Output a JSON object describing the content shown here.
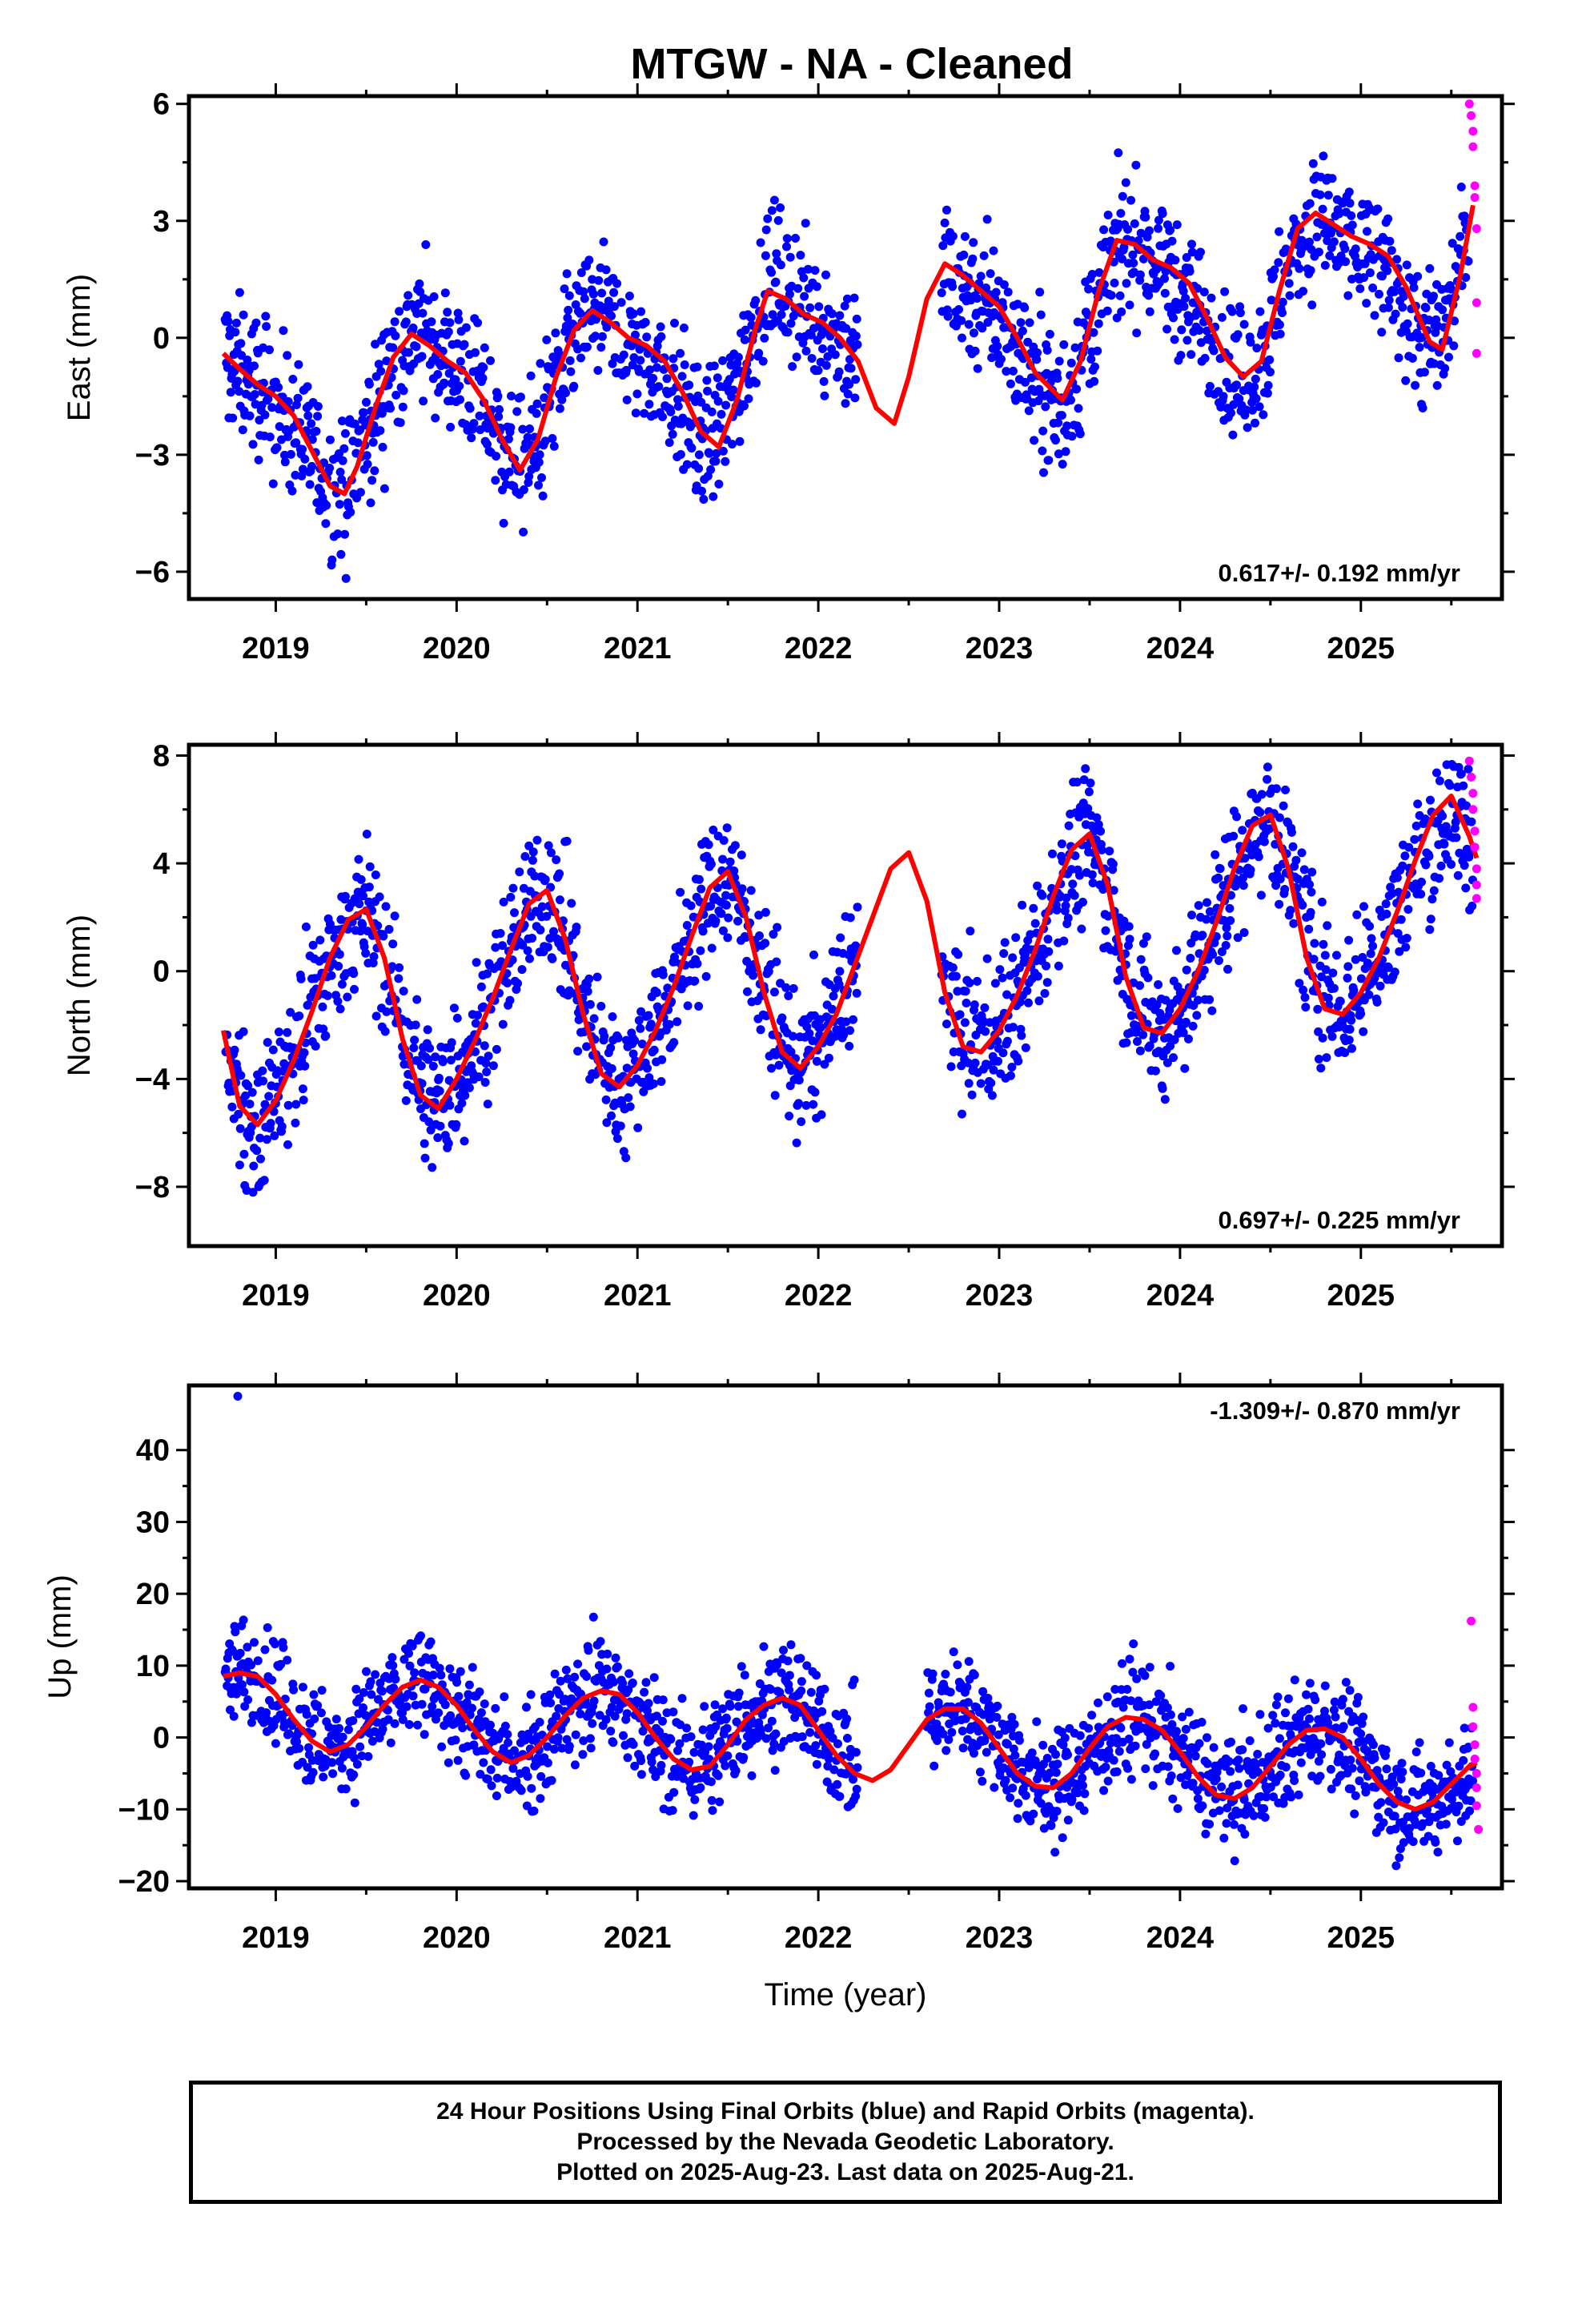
{
  "title": "MTGW  - NA - Cleaned",
  "colors": {
    "final_orbits": "#0000ff",
    "rapid_orbits": "#ff00ff",
    "model_fit": "#ff0000"
  },
  "footer": {
    "line1": "24 Hour Positions Using Final Orbits (blue) and Rapid Orbits (magenta).",
    "line2": "Processed by the Nevada Geodetic Laboratory.",
    "line3": "Plotted on 2025-Aug-23. Last data on 2025-Aug-21."
  },
  "chart_data": [
    {
      "type": "scatter",
      "panel": "east",
      "ylabel": "East (mm)",
      "xlabel": "",
      "rate_label": "0.617+/- 0.192 mm/yr",
      "rate_position": "bottom-right",
      "xlim": [
        2018.52,
        2025.78
      ],
      "ylim": [
        -6.7,
        6.2
      ],
      "yticks": [
        -6,
        -3,
        0,
        3,
        6
      ],
      "yticklabels": [
        "−6",
        "−3",
        "0",
        "3",
        "6"
      ],
      "xticks": [
        2019,
        2020,
        2021,
        2022,
        2023,
        2024,
        2025
      ],
      "xticklabels": [
        "2019",
        "2020",
        "2021",
        "2022",
        "2023",
        "2024",
        "2025"
      ],
      "gaps": [
        [
          2022.22,
          2022.68
        ]
      ],
      "model": {
        "name": "model fit",
        "x": [
          2018.71,
          2018.8,
          2018.9,
          2019.0,
          2019.1,
          2019.2,
          2019.3,
          2019.38,
          2019.45,
          2019.55,
          2019.65,
          2019.75,
          2019.85,
          2019.95,
          2020.05,
          2020.15,
          2020.25,
          2020.35,
          2020.45,
          2020.55,
          2020.65,
          2020.75,
          2020.85,
          2020.95,
          2021.05,
          2021.15,
          2021.25,
          2021.35,
          2021.45,
          2021.55,
          2021.65,
          2021.72,
          2021.82,
          2021.92,
          2022.02,
          2022.12,
          2022.22,
          2022.32,
          2022.42,
          2022.5,
          2022.6,
          2022.7,
          2022.8,
          2022.9,
          2023.0,
          2023.1,
          2023.2,
          2023.35,
          2023.45,
          2023.55,
          2023.65,
          2023.75,
          2023.85,
          2023.95,
          2024.05,
          2024.15,
          2024.25,
          2024.35,
          2024.45,
          2024.55,
          2024.65,
          2024.75,
          2024.85,
          2024.95,
          2025.05,
          2025.15,
          2025.25,
          2025.38,
          2025.45,
          2025.55,
          2025.62
        ],
        "y": [
          -0.4,
          -0.8,
          -1.2,
          -1.5,
          -2.0,
          -2.9,
          -3.8,
          -4.0,
          -3.3,
          -1.8,
          -0.5,
          0.1,
          -0.2,
          -0.6,
          -0.9,
          -1.6,
          -2.6,
          -3.4,
          -2.6,
          -1.0,
          0.2,
          0.7,
          0.4,
          0.0,
          -0.2,
          -0.6,
          -1.4,
          -2.4,
          -2.8,
          -1.6,
          0.2,
          1.2,
          1.0,
          0.6,
          0.4,
          0.0,
          -0.6,
          -1.8,
          -2.2,
          -1.0,
          1.0,
          1.9,
          1.6,
          1.2,
          0.8,
          0.0,
          -0.9,
          -1.6,
          -0.6,
          1.2,
          2.5,
          2.4,
          2.0,
          1.8,
          1.4,
          0.5,
          -0.5,
          -1.0,
          -0.6,
          1.2,
          2.8,
          3.2,
          2.9,
          2.6,
          2.4,
          2.1,
          1.3,
          -0.1,
          -0.3,
          1.6,
          3.4
        ]
      },
      "final_orbits_envelope": {
        "name": "Final Orbits (blue)",
        "x": [
          2018.72,
          2019.35,
          2019.8,
          2020.35,
          2020.75,
          2021.35,
          2021.75,
          2021.95,
          2022.2,
          2022.7,
          2023.35,
          2023.75,
          2024.35,
          2024.75,
          2025.35,
          2025.6
        ],
        "y": [
          -0.5,
          -4.2,
          0.6,
          -3.5,
          0.8,
          -3.0,
          2.4,
          0.5,
          -0.5,
          1.5,
          -2.0,
          2.6,
          -1.5,
          2.8,
          -0.8,
          3.0
        ],
        "spread": 1.6
      },
      "rapid_orbits": {
        "name": "Rapid Orbits (magenta)",
        "x": [
          2025.6,
          2025.61,
          2025.62,
          2025.62,
          2025.63,
          2025.63,
          2025.64,
          2025.64,
          2025.64
        ],
        "y": [
          6.0,
          5.7,
          5.3,
          4.9,
          3.9,
          3.6,
          2.8,
          0.9,
          -0.4
        ]
      }
    },
    {
      "type": "scatter",
      "panel": "north",
      "ylabel": "North (mm)",
      "xlabel": "",
      "rate_label": "0.697+/- 0.225 mm/yr",
      "rate_position": "bottom-right",
      "xlim": [
        2018.52,
        2025.78
      ],
      "ylim": [
        -10.2,
        8.4
      ],
      "yticks": [
        -8,
        -4,
        0,
        4,
        8
      ],
      "yticklabels": [
        "−8",
        "−4",
        "0",
        "4",
        "8"
      ],
      "xticks": [
        2019,
        2020,
        2021,
        2022,
        2023,
        2024,
        2025
      ],
      "xticklabels": [
        "2019",
        "2020",
        "2021",
        "2022",
        "2023",
        "2024",
        "2025"
      ],
      "gaps": [
        [
          2022.22,
          2022.68
        ]
      ],
      "model": {
        "name": "model fit",
        "x": [
          2018.71,
          2018.8,
          2018.9,
          2019.0,
          2019.1,
          2019.2,
          2019.3,
          2019.4,
          2019.5,
          2019.6,
          2019.7,
          2019.8,
          2019.9,
          2020.0,
          2020.1,
          2020.2,
          2020.3,
          2020.4,
          2020.5,
          2020.6,
          2020.7,
          2020.8,
          2020.9,
          2021.0,
          2021.1,
          2021.2,
          2021.3,
          2021.4,
          2021.5,
          2021.6,
          2021.7,
          2021.8,
          2021.9,
          2022.0,
          2022.1,
          2022.2,
          2022.3,
          2022.4,
          2022.5,
          2022.6,
          2022.7,
          2022.8,
          2022.9,
          2023.0,
          2023.1,
          2023.2,
          2023.3,
          2023.4,
          2023.5,
          2023.6,
          2023.7,
          2023.8,
          2023.9,
          2024.0,
          2024.1,
          2024.2,
          2024.3,
          2024.4,
          2024.5,
          2024.6,
          2024.7,
          2024.8,
          2024.9,
          2025.0,
          2025.1,
          2025.2,
          2025.3,
          2025.4,
          2025.5,
          2025.6,
          2025.64
        ],
        "y": [
          -2.2,
          -5.0,
          -5.7,
          -4.8,
          -3.3,
          -1.5,
          0.5,
          1.9,
          2.3,
          0.5,
          -2.5,
          -4.6,
          -5.1,
          -4.0,
          -2.6,
          -1.0,
          0.8,
          2.5,
          3.0,
          1.2,
          -1.6,
          -3.8,
          -4.3,
          -3.5,
          -2.2,
          -0.6,
          1.3,
          3.1,
          3.7,
          2.0,
          -0.8,
          -3.0,
          -3.6,
          -2.8,
          -1.6,
          0.2,
          2.0,
          3.8,
          4.4,
          2.6,
          -0.8,
          -2.8,
          -3.0,
          -2.2,
          -0.9,
          0.8,
          2.8,
          4.5,
          5.1,
          3.2,
          -0.2,
          -2.1,
          -2.3,
          -1.4,
          0.0,
          1.8,
          3.8,
          5.4,
          5.8,
          3.8,
          0.5,
          -1.4,
          -1.6,
          -0.8,
          0.5,
          2.2,
          4.1,
          5.8,
          6.5,
          5.0,
          4.2
        ]
      },
      "final_orbits_envelope": {
        "name": "Final Orbits (blue)",
        "x": [
          2018.72,
          2018.9,
          2019.5,
          2019.9,
          2020.5,
          2020.9,
          2021.5,
          2021.9,
          2022.2,
          2022.7,
          2023.0,
          2023.5,
          2023.9,
          2024.5,
          2024.9,
          2025.5,
          2025.62
        ],
        "y": [
          -2.5,
          -6.0,
          2.5,
          -5.2,
          3.5,
          -4.5,
          3.8,
          -3.8,
          0.5,
          -1.0,
          -2.5,
          4.8,
          -2.5,
          6.0,
          -1.2,
          5.2,
          5.8
        ],
        "spread": 2.4
      },
      "rapid_orbits": {
        "name": "Rapid Orbits (magenta)",
        "x": [
          2025.6,
          2025.61,
          2025.62,
          2025.62,
          2025.63,
          2025.63,
          2025.64,
          2025.64,
          2025.64
        ],
        "y": [
          7.8,
          7.2,
          6.6,
          6.0,
          5.2,
          4.6,
          3.8,
          3.2,
          2.7
        ]
      }
    },
    {
      "type": "scatter",
      "panel": "up",
      "ylabel": "Up (mm)",
      "xlabel": "Time (year)",
      "rate_label": "-1.309+/- 0.870 mm/yr",
      "rate_position": "top-right",
      "xlim": [
        2018.52,
        2025.78
      ],
      "ylim": [
        -21,
        49
      ],
      "yticks": [
        -20,
        -10,
        0,
        10,
        20,
        30,
        40
      ],
      "yticklabels": [
        "−20",
        "−10",
        "0",
        "10",
        "20",
        "30",
        "40"
      ],
      "xticks": [
        2019,
        2020,
        2021,
        2022,
        2023,
        2024,
        2025
      ],
      "xticklabels": [
        "2019",
        "2020",
        "2021",
        "2022",
        "2023",
        "2024",
        "2025"
      ],
      "gaps": [
        [
          2022.22,
          2022.6
        ]
      ],
      "model": {
        "name": "model fit",
        "x": [
          2018.71,
          2018.8,
          2018.9,
          2019.0,
          2019.1,
          2019.2,
          2019.3,
          2019.4,
          2019.5,
          2019.6,
          2019.7,
          2019.8,
          2019.9,
          2020.0,
          2020.1,
          2020.2,
          2020.3,
          2020.4,
          2020.5,
          2020.6,
          2020.7,
          2020.8,
          2020.9,
          2021.0,
          2021.1,
          2021.2,
          2021.3,
          2021.4,
          2021.5,
          2021.6,
          2021.7,
          2021.8,
          2021.9,
          2022.0,
          2022.1,
          2022.2,
          2022.3,
          2022.4,
          2022.5,
          2022.6,
          2022.7,
          2022.8,
          2022.9,
          2023.0,
          2023.1,
          2023.2,
          2023.3,
          2023.4,
          2023.5,
          2023.6,
          2023.7,
          2023.8,
          2023.9,
          2024.0,
          2024.1,
          2024.2,
          2024.3,
          2024.4,
          2024.5,
          2024.6,
          2024.7,
          2024.8,
          2024.9,
          2025.0,
          2025.1,
          2025.2,
          2025.3,
          2025.4,
          2025.5,
          2025.6,
          2025.64
        ],
        "y": [
          8.5,
          9.0,
          8.5,
          6.0,
          2.5,
          -0.5,
          -2.0,
          -1.0,
          1.5,
          4.5,
          7.0,
          8.0,
          7.0,
          4.5,
          1.0,
          -2.0,
          -3.5,
          -2.5,
          0.0,
          3.0,
          5.5,
          6.5,
          6.0,
          3.5,
          0.0,
          -3.0,
          -4.5,
          -4.0,
          -1.0,
          2.5,
          4.5,
          5.5,
          4.5,
          1.0,
          -2.5,
          -5.0,
          -6.0,
          -4.5,
          -1.0,
          2.5,
          4.0,
          4.0,
          2.0,
          -1.5,
          -5.0,
          -6.8,
          -7.0,
          -5.0,
          -1.5,
          1.5,
          2.8,
          2.5,
          1.0,
          -2.0,
          -5.5,
          -8.0,
          -8.5,
          -7.0,
          -4.0,
          -1.0,
          1.0,
          1.2,
          0.0,
          -3.0,
          -6.5,
          -9.0,
          -10.0,
          -9.0,
          -6.5,
          -4.0,
          -3.5
        ]
      },
      "final_orbits_envelope": {
        "name": "Final Orbits (blue)",
        "x": [
          2018.72,
          2018.9,
          2019.3,
          2019.8,
          2020.3,
          2020.8,
          2021.3,
          2021.8,
          2022.1,
          2022.65,
          2022.85,
          2023.3,
          2023.8,
          2024.3,
          2024.8,
          2025.3,
          2025.62
        ],
        "y": [
          10,
          10,
          -2,
          6,
          -3,
          6,
          -4,
          8,
          0,
          4,
          5,
          -7,
          3,
          -8,
          2,
          -9,
          -8
        ],
        "spread": 7
      },
      "rapid_orbits": {
        "name": "Rapid Orbits (magenta)",
        "x": [
          2025.61,
          2025.62,
          2025.62,
          2025.63,
          2025.63,
          2025.64,
          2025.64,
          2025.64,
          2025.65
        ],
        "y": [
          16.2,
          4.2,
          1.5,
          -1.0,
          -3.0,
          -5.0,
          -7.0,
          -9.5,
          -12.8
        ]
      },
      "outliers": {
        "name": "Final Orbits (blue)",
        "x": [
          2018.79
        ],
        "y": [
          47.5
        ]
      }
    }
  ]
}
